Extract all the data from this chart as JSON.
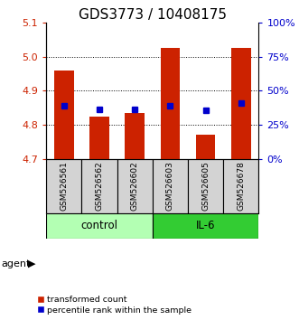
{
  "title": "GDS3773 / 10408175",
  "samples": [
    "GSM526561",
    "GSM526562",
    "GSM526602",
    "GSM526603",
    "GSM526605",
    "GSM526678"
  ],
  "red_bar_tops": [
    4.96,
    4.825,
    4.835,
    5.025,
    4.77,
    5.025
  ],
  "blue_square_vals": [
    4.855,
    4.845,
    4.845,
    4.857,
    4.843,
    4.865
  ],
  "bar_bottom": 4.7,
  "ylim_min": 4.7,
  "ylim_max": 5.1,
  "y_ticks_left": [
    4.7,
    4.8,
    4.9,
    5.0,
    5.1
  ],
  "y_ticks_right_pct": [
    0,
    25,
    50,
    75,
    100
  ],
  "control_color": "#b3ffb3",
  "il6_color": "#33cc33",
  "bar_color": "#cc2200",
  "blue_color": "#0000cc",
  "sample_bg_color": "#d3d3d3",
  "agent_label": "agent",
  "control_label": "control",
  "il6_label": "IL-6",
  "legend_red": "transformed count",
  "legend_blue": "percentile rank within the sample",
  "title_fontsize": 11,
  "tick_fontsize": 8,
  "label_fontsize": 8,
  "bar_width": 0.55,
  "dotted_lines": [
    4.8,
    4.9,
    5.0
  ]
}
